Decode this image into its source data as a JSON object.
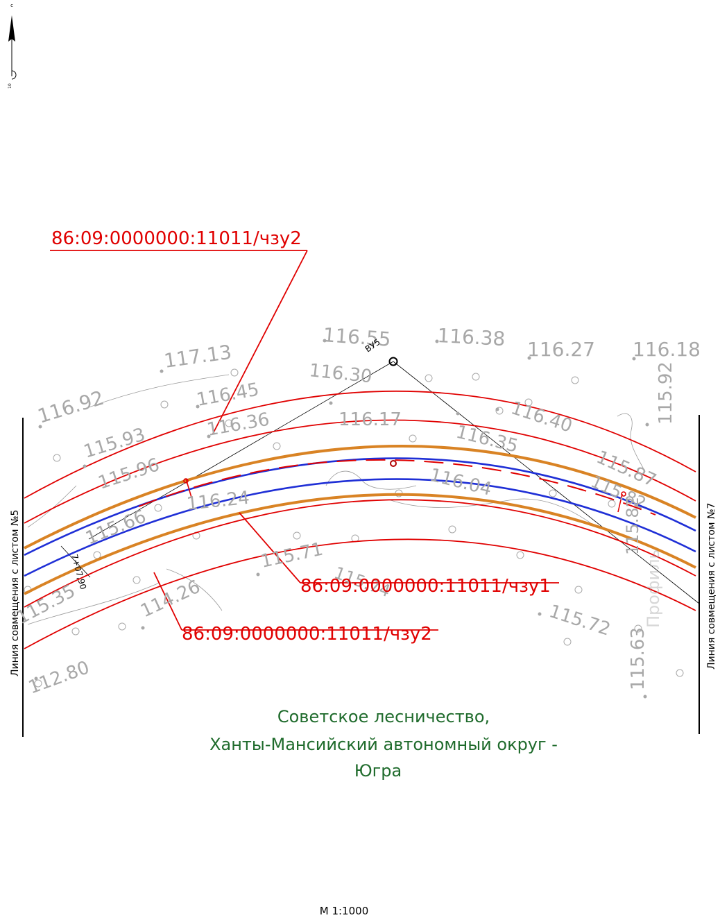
{
  "map": {
    "cadastral_labels": [
      "86:09:0000000:11011/чзу2",
      "86:09:0000000:11011/чзу1",
      "86:09:0000000:11011/чзу2"
    ],
    "match_lines": {
      "left": "Линия совмещения с листом №5",
      "right": "Линия совмещения с листом №7"
    },
    "forestry_label": {
      "line1": "Советское лесничество,",
      "line2": "Ханты-Мансийский автономный округ -",
      "line3": "Югра"
    },
    "angle_point": "ВУ5",
    "chainage": "7+07,90",
    "scale": "М 1:1000",
    "north_arrow": {
      "top_letter": "с",
      "bottom_number": "10"
    },
    "spot_elevations": [
      "116.92",
      "117.13",
      "116.55",
      "116.38",
      "116.27",
      "116.18",
      "115.93",
      "116.45",
      "116.30",
      "115.92",
      "116.36",
      "116.17",
      "116.40",
      "115.96",
      "116.35",
      "115.87",
      "116.24",
      "116.04",
      "115.66",
      "115.71",
      "115.35",
      "114.26",
      "115.72",
      "112.80",
      "115.63",
      "115.82",
      "115.74",
      "115.82"
    ],
    "ghost_text": "Профиль",
    "colors": {
      "boundary": "#e00000",
      "centerline": "#e00000",
      "pipe_edges": "#1f2fd6",
      "corridor": "#d98324",
      "elevation_text": "#a8a8a8",
      "forestry_text": "#1f6b2c"
    }
  }
}
